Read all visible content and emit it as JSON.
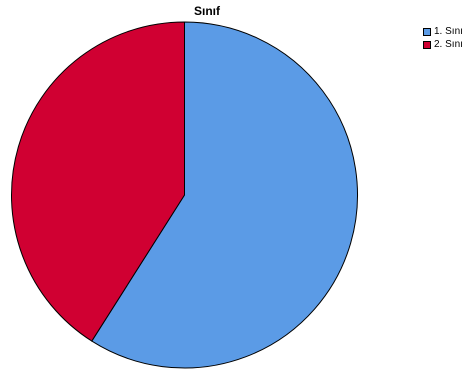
{
  "chart_data": {
    "type": "pie",
    "title": "Sınıf",
    "categories": [
      "1. Sını",
      "2. Sını"
    ],
    "values": [
      59,
      41
    ],
    "colors": [
      "#5b9be6",
      "#d00032"
    ],
    "start": "12 o'clock",
    "direction": "clockwise",
    "legend_position": "top-right",
    "edge_color": "#000000"
  }
}
